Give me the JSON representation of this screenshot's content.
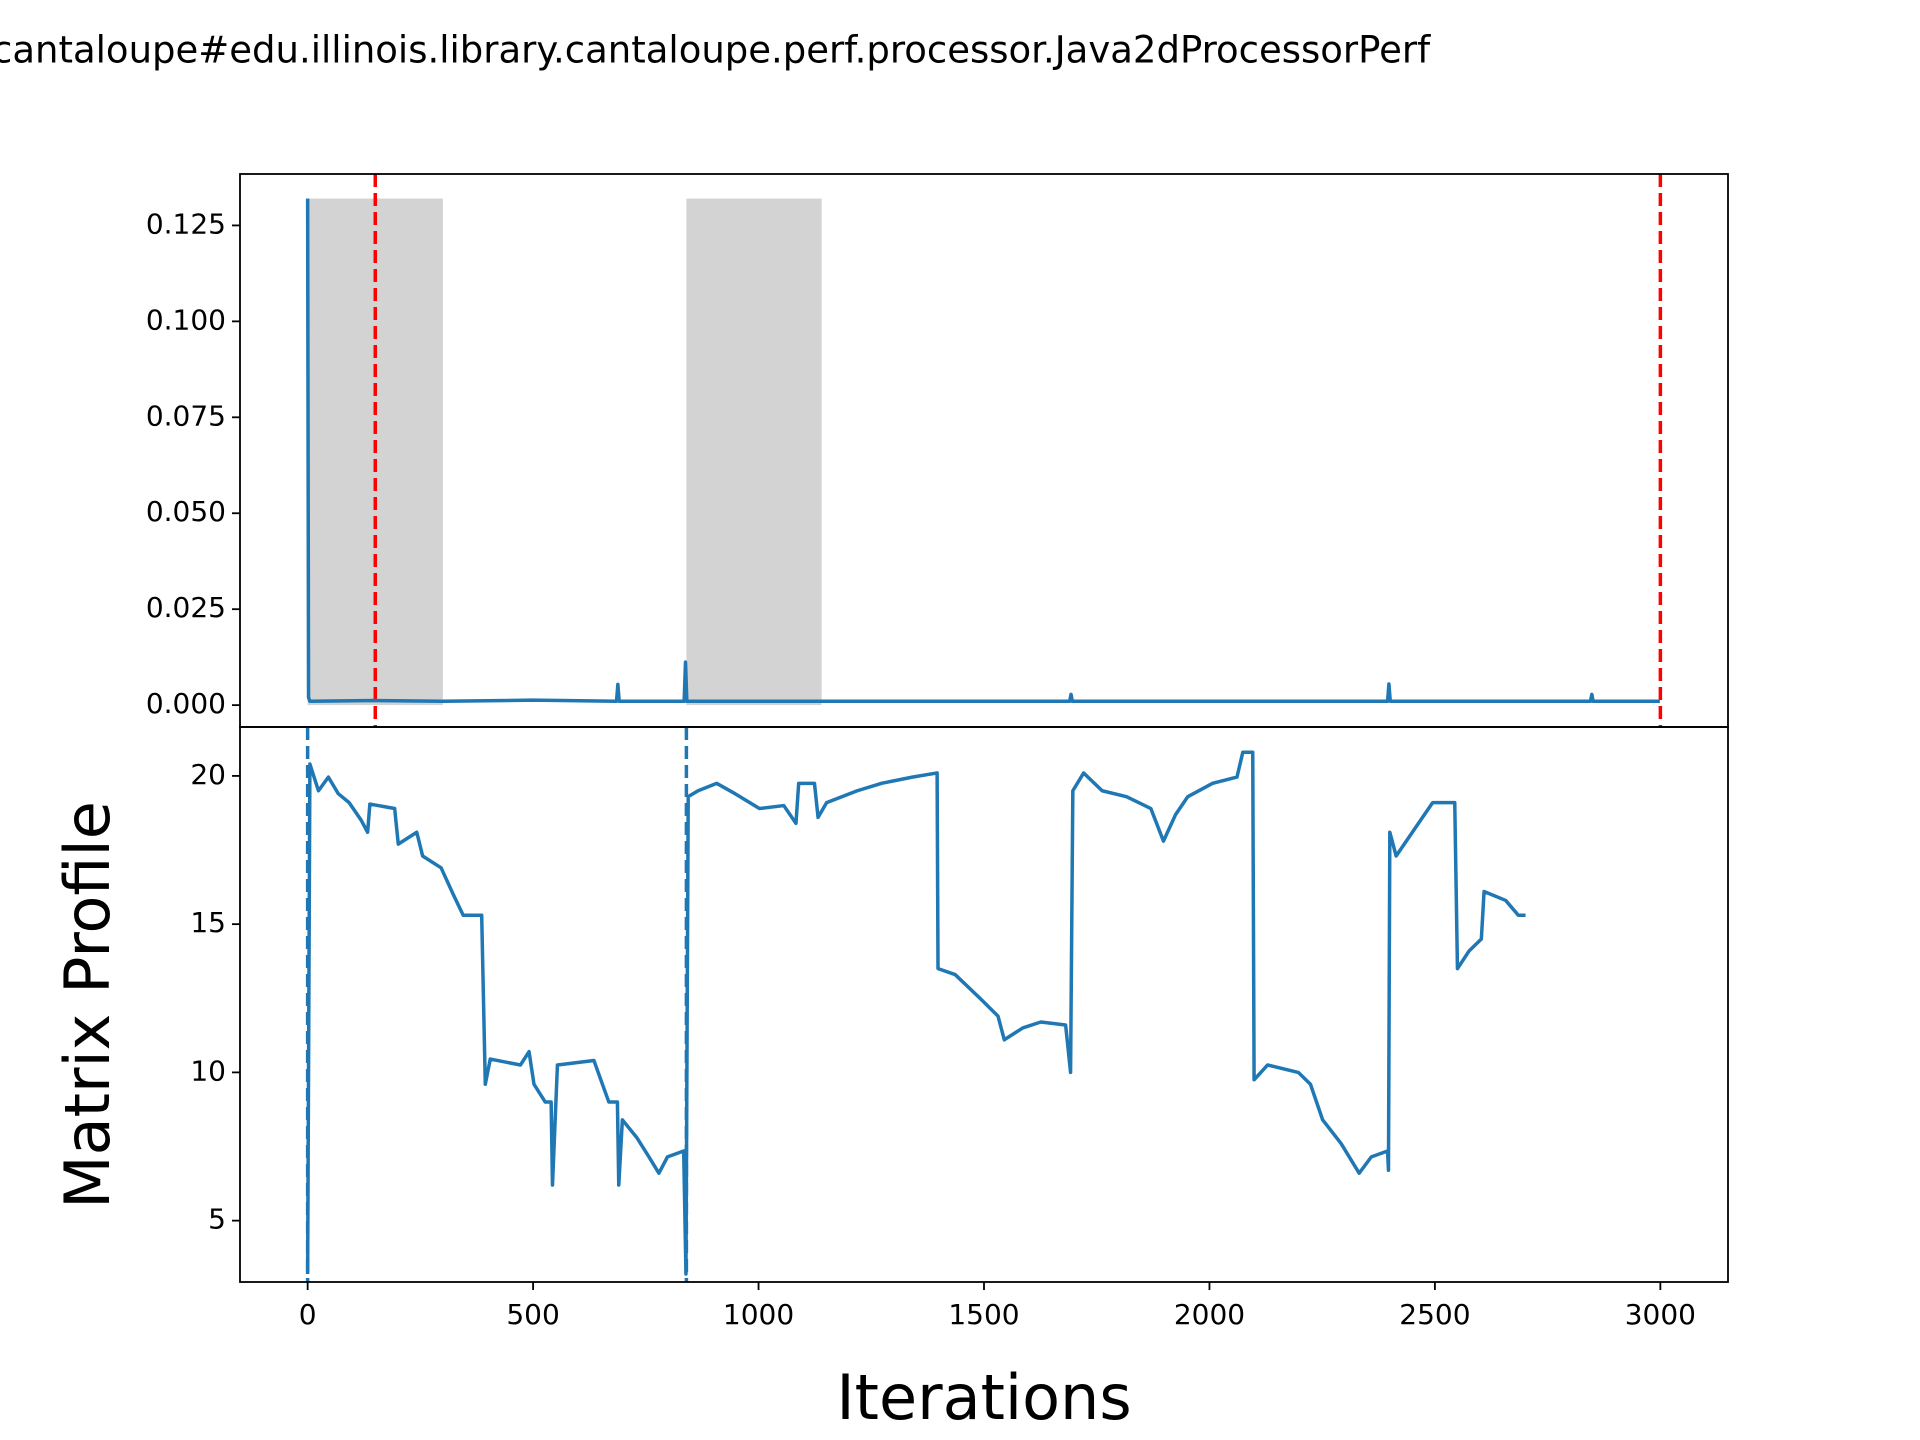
{
  "chart_data": [
    {
      "type": "line",
      "title": "cantaloupe#edu.illinois.library.cantaloupe.perf.processor.Java2dProcessorPerf",
      "x": [
        0,
        2,
        5,
        150,
        300,
        500,
        685,
        688,
        691,
        700,
        835,
        838,
        841,
        850,
        1000,
        1200,
        1690,
        1693,
        1696,
        1700,
        2000,
        2395,
        2398,
        2401,
        2410,
        2600,
        2845,
        2848,
        2851,
        2860,
        2999
      ],
      "values": [
        0.132,
        0.002,
        0.001,
        0.0012,
        0.001,
        0.0013,
        0.001,
        0.0054,
        0.001,
        0.001,
        0.001,
        0.0112,
        0.001,
        0.001,
        0.001,
        0.001,
        0.001,
        0.0028,
        0.001,
        0.001,
        0.001,
        0.001,
        0.0055,
        0.001,
        0.001,
        0.001,
        0.001,
        0.0028,
        0.001,
        0.001,
        0.001
      ],
      "color": "#1f77b4",
      "xlim": [
        -150,
        3150
      ],
      "ylim": [
        -0.0057,
        0.1384
      ],
      "yticks": [
        {
          "value": 0,
          "label": "0.000"
        },
        {
          "value": 0.025,
          "label": "0.025"
        },
        {
          "value": 0.05,
          "label": "0.050"
        },
        {
          "value": 0.075,
          "label": "0.075"
        },
        {
          "value": 0.1,
          "label": "0.100"
        },
        {
          "value": 0.125,
          "label": "0.125"
        }
      ],
      "shaded_regions": [
        {
          "x": [
            0,
            300
          ],
          "y": [
            0,
            0.132
          ],
          "color": "#d3d3d3"
        },
        {
          "x": [
            840,
            1140
          ],
          "y": [
            0,
            0.132
          ],
          "color": "#d3d3d3"
        }
      ],
      "vlines": [
        {
          "x": 150,
          "color": "#ff0000",
          "dashed": true
        },
        {
          "x": 3000,
          "color": "#ff0000",
          "dashed": true
        }
      ]
    },
    {
      "type": "line",
      "xlabel": "Iterations",
      "ylabel": "Matrix Profile",
      "x": [
        0,
        5,
        24,
        46,
        68,
        92,
        119,
        133,
        138,
        193,
        201,
        242,
        255,
        296,
        323,
        345,
        386,
        394,
        405,
        472,
        491,
        502,
        527,
        540,
        543,
        554,
        635,
        649,
        668,
        687,
        690,
        698,
        730,
        757,
        779,
        798,
        834,
        839,
        844,
        866,
        907,
        948,
        1002,
        1056,
        1083,
        1089,
        1124,
        1132,
        1151,
        1219,
        1273,
        1341,
        1396,
        1398,
        1436,
        1491,
        1531,
        1545,
        1586,
        1626,
        1681,
        1692,
        1697,
        1721,
        1762,
        1816,
        1870,
        1898,
        1925,
        1952,
        2007,
        2061,
        2074,
        2096,
        2099,
        2129,
        2197,
        2224,
        2251,
        2292,
        2332,
        2359,
        2395,
        2397,
        2400,
        2414,
        2468,
        2495,
        2544,
        2550,
        2576,
        2603,
        2609,
        2657,
        2685,
        2701
      ],
      "values": [
        3.2,
        20.4,
        19.5,
        19.96,
        19.4,
        19.1,
        18.5,
        18.1,
        19.05,
        18.9,
        17.7,
        18.1,
        17.3,
        16.9,
        16.0,
        15.3,
        15.3,
        9.6,
        10.45,
        10.25,
        10.7,
        9.6,
        9.0,
        9.0,
        6.2,
        10.25,
        10.4,
        9.8,
        9.0,
        9.0,
        6.2,
        8.4,
        7.8,
        7.15,
        6.6,
        7.15,
        7.35,
        3.2,
        19.3,
        19.5,
        19.75,
        19.4,
        18.9,
        19.0,
        18.4,
        19.75,
        19.75,
        18.6,
        19.1,
        19.5,
        19.75,
        19.96,
        20.1,
        13.5,
        13.3,
        12.5,
        11.9,
        11.1,
        11.5,
        11.7,
        11.6,
        10.0,
        19.5,
        20.1,
        19.5,
        19.3,
        18.9,
        17.8,
        18.7,
        19.3,
        19.75,
        19.96,
        20.8,
        20.8,
        9.75,
        10.25,
        10.0,
        9.6,
        8.4,
        7.6,
        6.6,
        7.15,
        7.35,
        6.7,
        18.1,
        17.3,
        18.5,
        19.1,
        19.1,
        13.5,
        14.1,
        14.5,
        16.1,
        15.8,
        15.3,
        15.3
      ],
      "color": "#1f77b4",
      "xlim": [
        -150,
        3150
      ],
      "ylim": [
        2.93,
        21.65
      ],
      "xticks": [
        0,
        500,
        1000,
        1500,
        2000,
        2500,
        3000
      ],
      "yticks": [
        5,
        10,
        15,
        20
      ],
      "vlines": [
        {
          "x": 0,
          "color": "#1f77b4",
          "dashed": true
        },
        {
          "x": 840,
          "color": "#1f77b4",
          "dashed": true
        }
      ]
    }
  ]
}
